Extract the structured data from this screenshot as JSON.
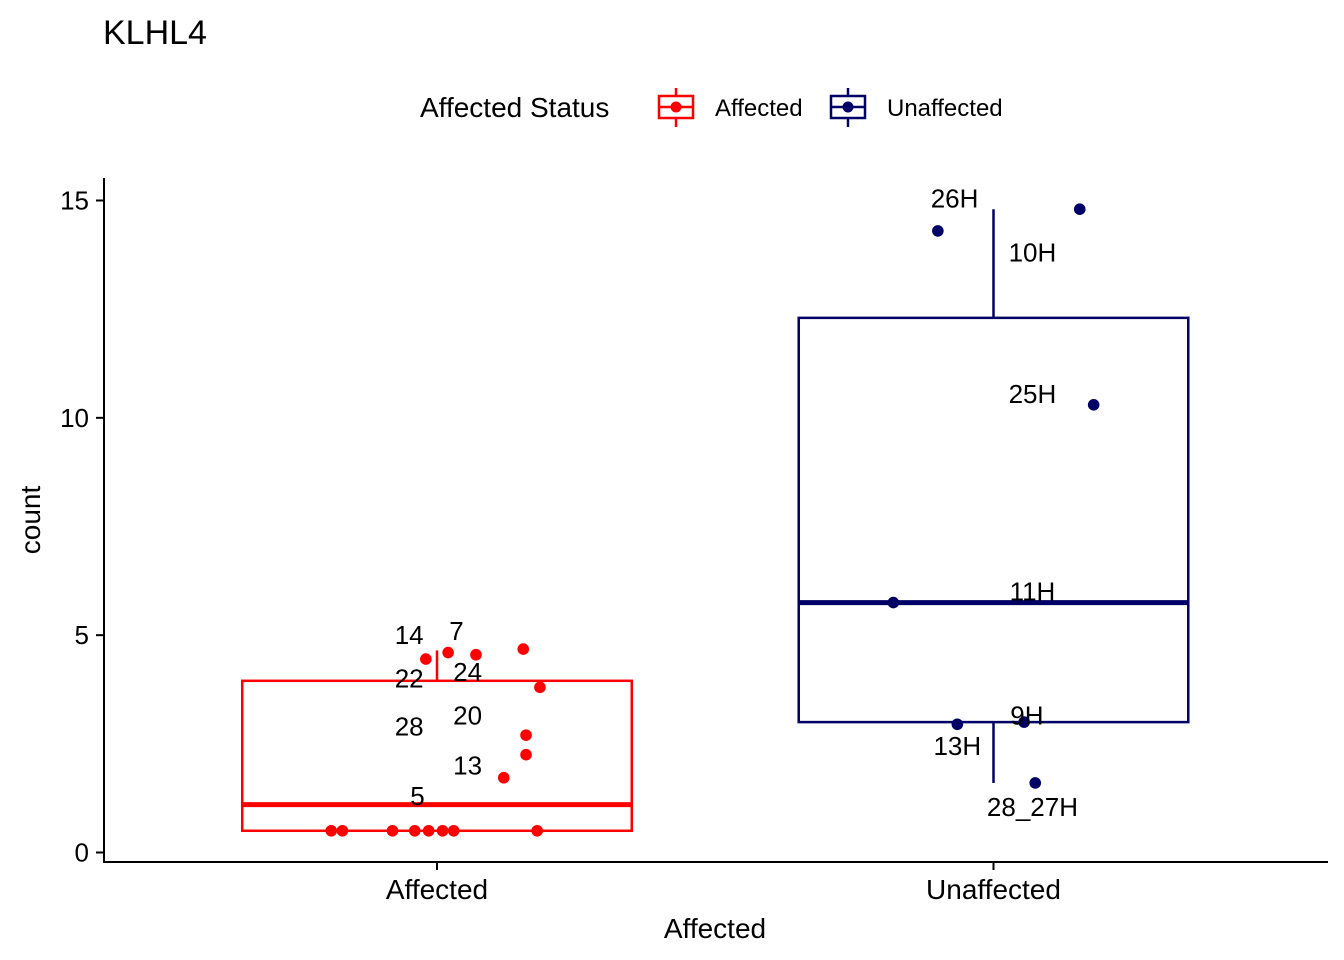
{
  "chart_data": {
    "type": "box",
    "title": "KLHL4",
    "xlabel": "Affected",
    "ylabel": "count",
    "ylim": [
      -0.2,
      15.5
    ],
    "yticks": [
      0,
      5,
      10,
      15
    ],
    "categories": [
      "Affected",
      "Unaffected"
    ],
    "legend": {
      "title": "Affected Status",
      "position": "top",
      "entries": [
        {
          "label": "Affected",
          "color": "#FF0000"
        },
        {
          "label": "Unaffected",
          "color": "#000066"
        }
      ]
    },
    "boxes": [
      {
        "category": "Affected",
        "color": "#FF0000",
        "q1": 0.5,
        "median": 1.1,
        "q3": 3.95,
        "whisker_low": 0.5,
        "whisker_high": 4.65
      },
      {
        "category": "Unaffected",
        "color": "#000066",
        "q1": 3.0,
        "median": 5.75,
        "q3": 12.3,
        "whisker_low": 1.6,
        "whisker_high": 14.8
      }
    ],
    "points": [
      {
        "category": "Affected",
        "offset": -0.19,
        "y": 0.5
      },
      {
        "category": "Affected",
        "offset": -0.17,
        "y": 0.5
      },
      {
        "category": "Affected",
        "offset": -0.08,
        "y": 0.5
      },
      {
        "category": "Affected",
        "offset": -0.04,
        "y": 0.5
      },
      {
        "category": "Affected",
        "offset": -0.015,
        "y": 0.5
      },
      {
        "category": "Affected",
        "offset": 0.01,
        "y": 0.5
      },
      {
        "category": "Affected",
        "offset": 0.03,
        "y": 0.5
      },
      {
        "category": "Affected",
        "offset": 0.18,
        "y": 0.5
      },
      {
        "category": "Affected",
        "offset": -0.02,
        "y": 4.45
      },
      {
        "category": "Affected",
        "offset": 0.02,
        "y": 4.6
      },
      {
        "category": "Affected",
        "offset": 0.07,
        "y": 4.55
      },
      {
        "category": "Affected",
        "offset": 0.155,
        "y": 4.68
      },
      {
        "category": "Affected",
        "offset": 0.185,
        "y": 3.8
      },
      {
        "category": "Affected",
        "offset": 0.16,
        "y": 2.7
      },
      {
        "category": "Affected",
        "offset": 0.16,
        "y": 2.25
      },
      {
        "category": "Affected",
        "offset": 0.12,
        "y": 1.72
      },
      {
        "category": "Unaffected",
        "offset": -0.1,
        "y": 14.3
      },
      {
        "category": "Unaffected",
        "offset": 0.155,
        "y": 14.8
      },
      {
        "category": "Unaffected",
        "offset": 0.18,
        "y": 10.3
      },
      {
        "category": "Unaffected",
        "offset": -0.18,
        "y": 5.75
      },
      {
        "category": "Unaffected",
        "offset": -0.065,
        "y": 2.95
      },
      {
        "category": "Unaffected",
        "offset": 0.055,
        "y": 3.0
      },
      {
        "category": "Unaffected",
        "offset": 0.075,
        "y": 1.6
      }
    ],
    "point_labels": [
      {
        "category": "Affected",
        "offset": -0.05,
        "y": 5.0,
        "text": "14"
      },
      {
        "category": "Affected",
        "offset": 0.035,
        "y": 5.1,
        "text": "7"
      },
      {
        "category": "Affected",
        "offset": -0.05,
        "y": 4.0,
        "text": "22"
      },
      {
        "category": "Affected",
        "offset": 0.055,
        "y": 4.15,
        "text": "24"
      },
      {
        "category": "Affected",
        "offset": -0.05,
        "y": 2.9,
        "text": "28"
      },
      {
        "category": "Affected",
        "offset": 0.055,
        "y": 3.15,
        "text": "20"
      },
      {
        "category": "Affected",
        "offset": 0.055,
        "y": 2.0,
        "text": "13"
      },
      {
        "category": "Affected",
        "offset": -0.035,
        "y": 1.3,
        "text": "5"
      },
      {
        "category": "Unaffected",
        "offset": -0.07,
        "y": 15.05,
        "text": "26H"
      },
      {
        "category": "Unaffected",
        "offset": 0.07,
        "y": 13.8,
        "text": "10H"
      },
      {
        "category": "Unaffected",
        "offset": 0.07,
        "y": 10.55,
        "text": "25H"
      },
      {
        "category": "Unaffected",
        "offset": 0.07,
        "y": 6.0,
        "text": "11H"
      },
      {
        "category": "Unaffected",
        "offset": 0.06,
        "y": 3.15,
        "text": "9H"
      },
      {
        "category": "Unaffected",
        "offset": -0.065,
        "y": 2.45,
        "text": "13H"
      },
      {
        "category": "Unaffected",
        "offset": 0.07,
        "y": 1.05,
        "text": "28_27H"
      }
    ]
  }
}
